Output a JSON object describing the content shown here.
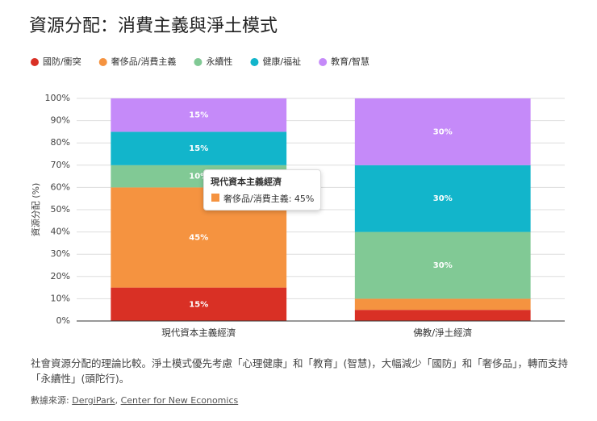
{
  "chart_data": {
    "type": "stacked-bar",
    "title": "資源分配：消費主義與淨土模式",
    "y_label": "資源分配 (%)",
    "categories": [
      "現代資本主義經濟",
      "佛教/淨土經濟"
    ],
    "series": [
      {
        "name": "國防/衝突",
        "color": "#d93025",
        "values": [
          15,
          5
        ],
        "value_labels": [
          "15%",
          null
        ]
      },
      {
        "name": "奢侈品/消費主義",
        "color": "#f59340",
        "values": [
          45,
          5
        ],
        "value_labels": [
          "45%",
          null
        ]
      },
      {
        "name": "永續性",
        "color": "#81c995",
        "values": [
          10,
          30
        ],
        "value_labels": [
          "10%",
          "30%"
        ]
      },
      {
        "name": "健康/福祉",
        "color": "#12b5cb",
        "values": [
          15,
          30
        ],
        "value_labels": [
          "15%",
          "30%"
        ]
      },
      {
        "name": "教育/智慧",
        "color": "#c58af9",
        "values": [
          15,
          30
        ],
        "value_labels": [
          "15%",
          "30%"
        ]
      }
    ],
    "ylim": [
      0,
      100
    ],
    "yticks": [
      {
        "value": 0,
        "label": "0%"
      },
      {
        "value": 10,
        "label": "10%"
      },
      {
        "value": 20,
        "label": "20%"
      },
      {
        "value": 30,
        "label": "30%"
      },
      {
        "value": 40,
        "label": "40%"
      },
      {
        "value": 50,
        "label": "50%"
      },
      {
        "value": 60,
        "label": "60%"
      },
      {
        "value": 70,
        "label": "70%"
      },
      {
        "value": 80,
        "label": "80%"
      },
      {
        "value": 90,
        "label": "90%"
      },
      {
        "value": 100,
        "label": "100%"
      }
    ],
    "grid": true,
    "legend": "top",
    "tooltip": {
      "title": "現代資本主義經濟",
      "text": "奢侈品/消費主義: 45%"
    }
  },
  "caption": "社會資源分配的理論比較。淨土模式優先考慮「心理健康」和「教育」(智慧)，大幅減少「國防」和「奢侈品」，轉而支持「永續性」(頭陀行)。",
  "source": {
    "label": "數據來源:",
    "links": [
      "DergiPark",
      "Center for New Economics"
    ],
    "separator": ","
  }
}
